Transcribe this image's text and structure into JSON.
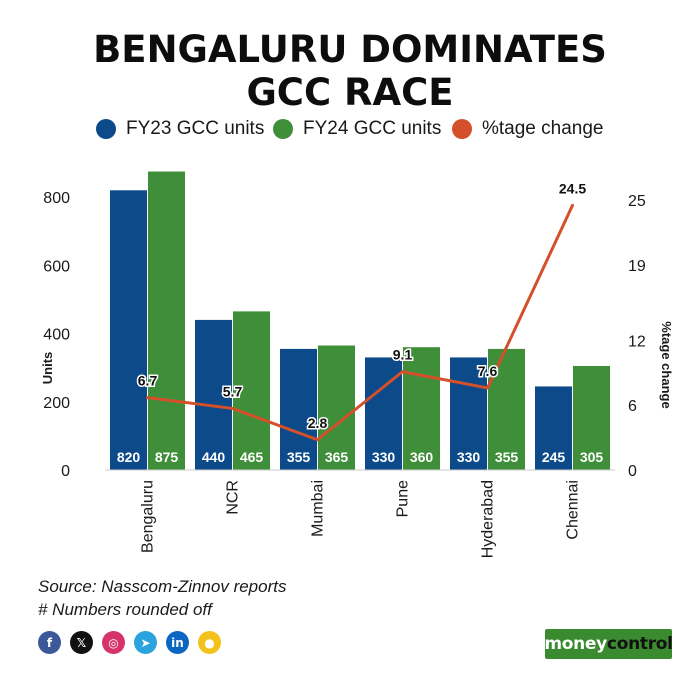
{
  "chart_data": {
    "type": "bar",
    "title": "BENGALURU DOMINATES GCC RACE",
    "categories": [
      "Bengaluru",
      "NCR",
      "Mumbai",
      "Pune",
      "Hyderabad",
      "Chennai"
    ],
    "series": [
      {
        "name": "FY23 GCC units",
        "type": "bar",
        "axis": "left",
        "color": "#0c4a8a",
        "values": [
          820,
          440,
          355,
          330,
          330,
          245
        ]
      },
      {
        "name": "FY24 GCC units",
        "type": "bar",
        "axis": "left",
        "color": "#3f8f3a",
        "values": [
          875,
          465,
          365,
          360,
          355,
          305
        ]
      },
      {
        "name": "%tage change",
        "type": "line",
        "axis": "right",
        "color": "#d4502a",
        "values": [
          6.7,
          5.7,
          2.8,
          9.1,
          7.6,
          24.5
        ]
      }
    ],
    "bar_labels": {
      "FY23": [
        "820",
        "440",
        "355",
        "330",
        "330",
        "245"
      ],
      "FY24": [
        "875",
        "465",
        "365",
        "360",
        "355",
        "305"
      ]
    },
    "line_labels": [
      "6.7",
      "5.7",
      "2.8",
      "9.1",
      "7.6",
      "24.5"
    ],
    "ylabel": "Units",
    "y2label": "%tage change",
    "y_ticks": [
      "0",
      "200",
      "400",
      "600",
      "800"
    ],
    "y_tick_values": [
      0,
      200,
      400,
      600,
      800
    ],
    "y2_ticks": [
      "0",
      "6",
      "12",
      "19",
      "25"
    ],
    "y2_tick_values": [
      0,
      6,
      12,
      19,
      25
    ],
    "ylim": [
      0,
      900
    ],
    "y2lim": [
      0,
      25
    ],
    "grid": false,
    "legend_position": "top"
  },
  "header": {
    "title_line1": "BENGALURU DOMINATES",
    "title_line2": "GCC RACE"
  },
  "legend": {
    "fy23": "FY23 GCC units",
    "fy24": "FY24 GCC units",
    "change": "%tage change",
    "colors": {
      "fy23": "#0c4a8a",
      "fy24": "#3f8f3a",
      "change": "#d4502a"
    }
  },
  "footer": {
    "source": "Source: Nasscom-Zinnov reports",
    "note": "# Numbers rounded off"
  },
  "socials": [
    {
      "name": "facebook-icon",
      "glyph": "f",
      "color": "#3b5998"
    },
    {
      "name": "x-icon",
      "glyph": "𝕏",
      "color": "#111111"
    },
    {
      "name": "instagram-icon",
      "glyph": "◎",
      "color": "#d6336c"
    },
    {
      "name": "telegram-icon",
      "glyph": "➤",
      "color": "#2aa3df"
    },
    {
      "name": "linkedin-icon",
      "glyph": "in",
      "color": "#0a66c2"
    },
    {
      "name": "koo-icon",
      "glyph": "●",
      "color": "#f2c21b"
    }
  ],
  "brand": {
    "part1": "money",
    "part2": "control"
  }
}
